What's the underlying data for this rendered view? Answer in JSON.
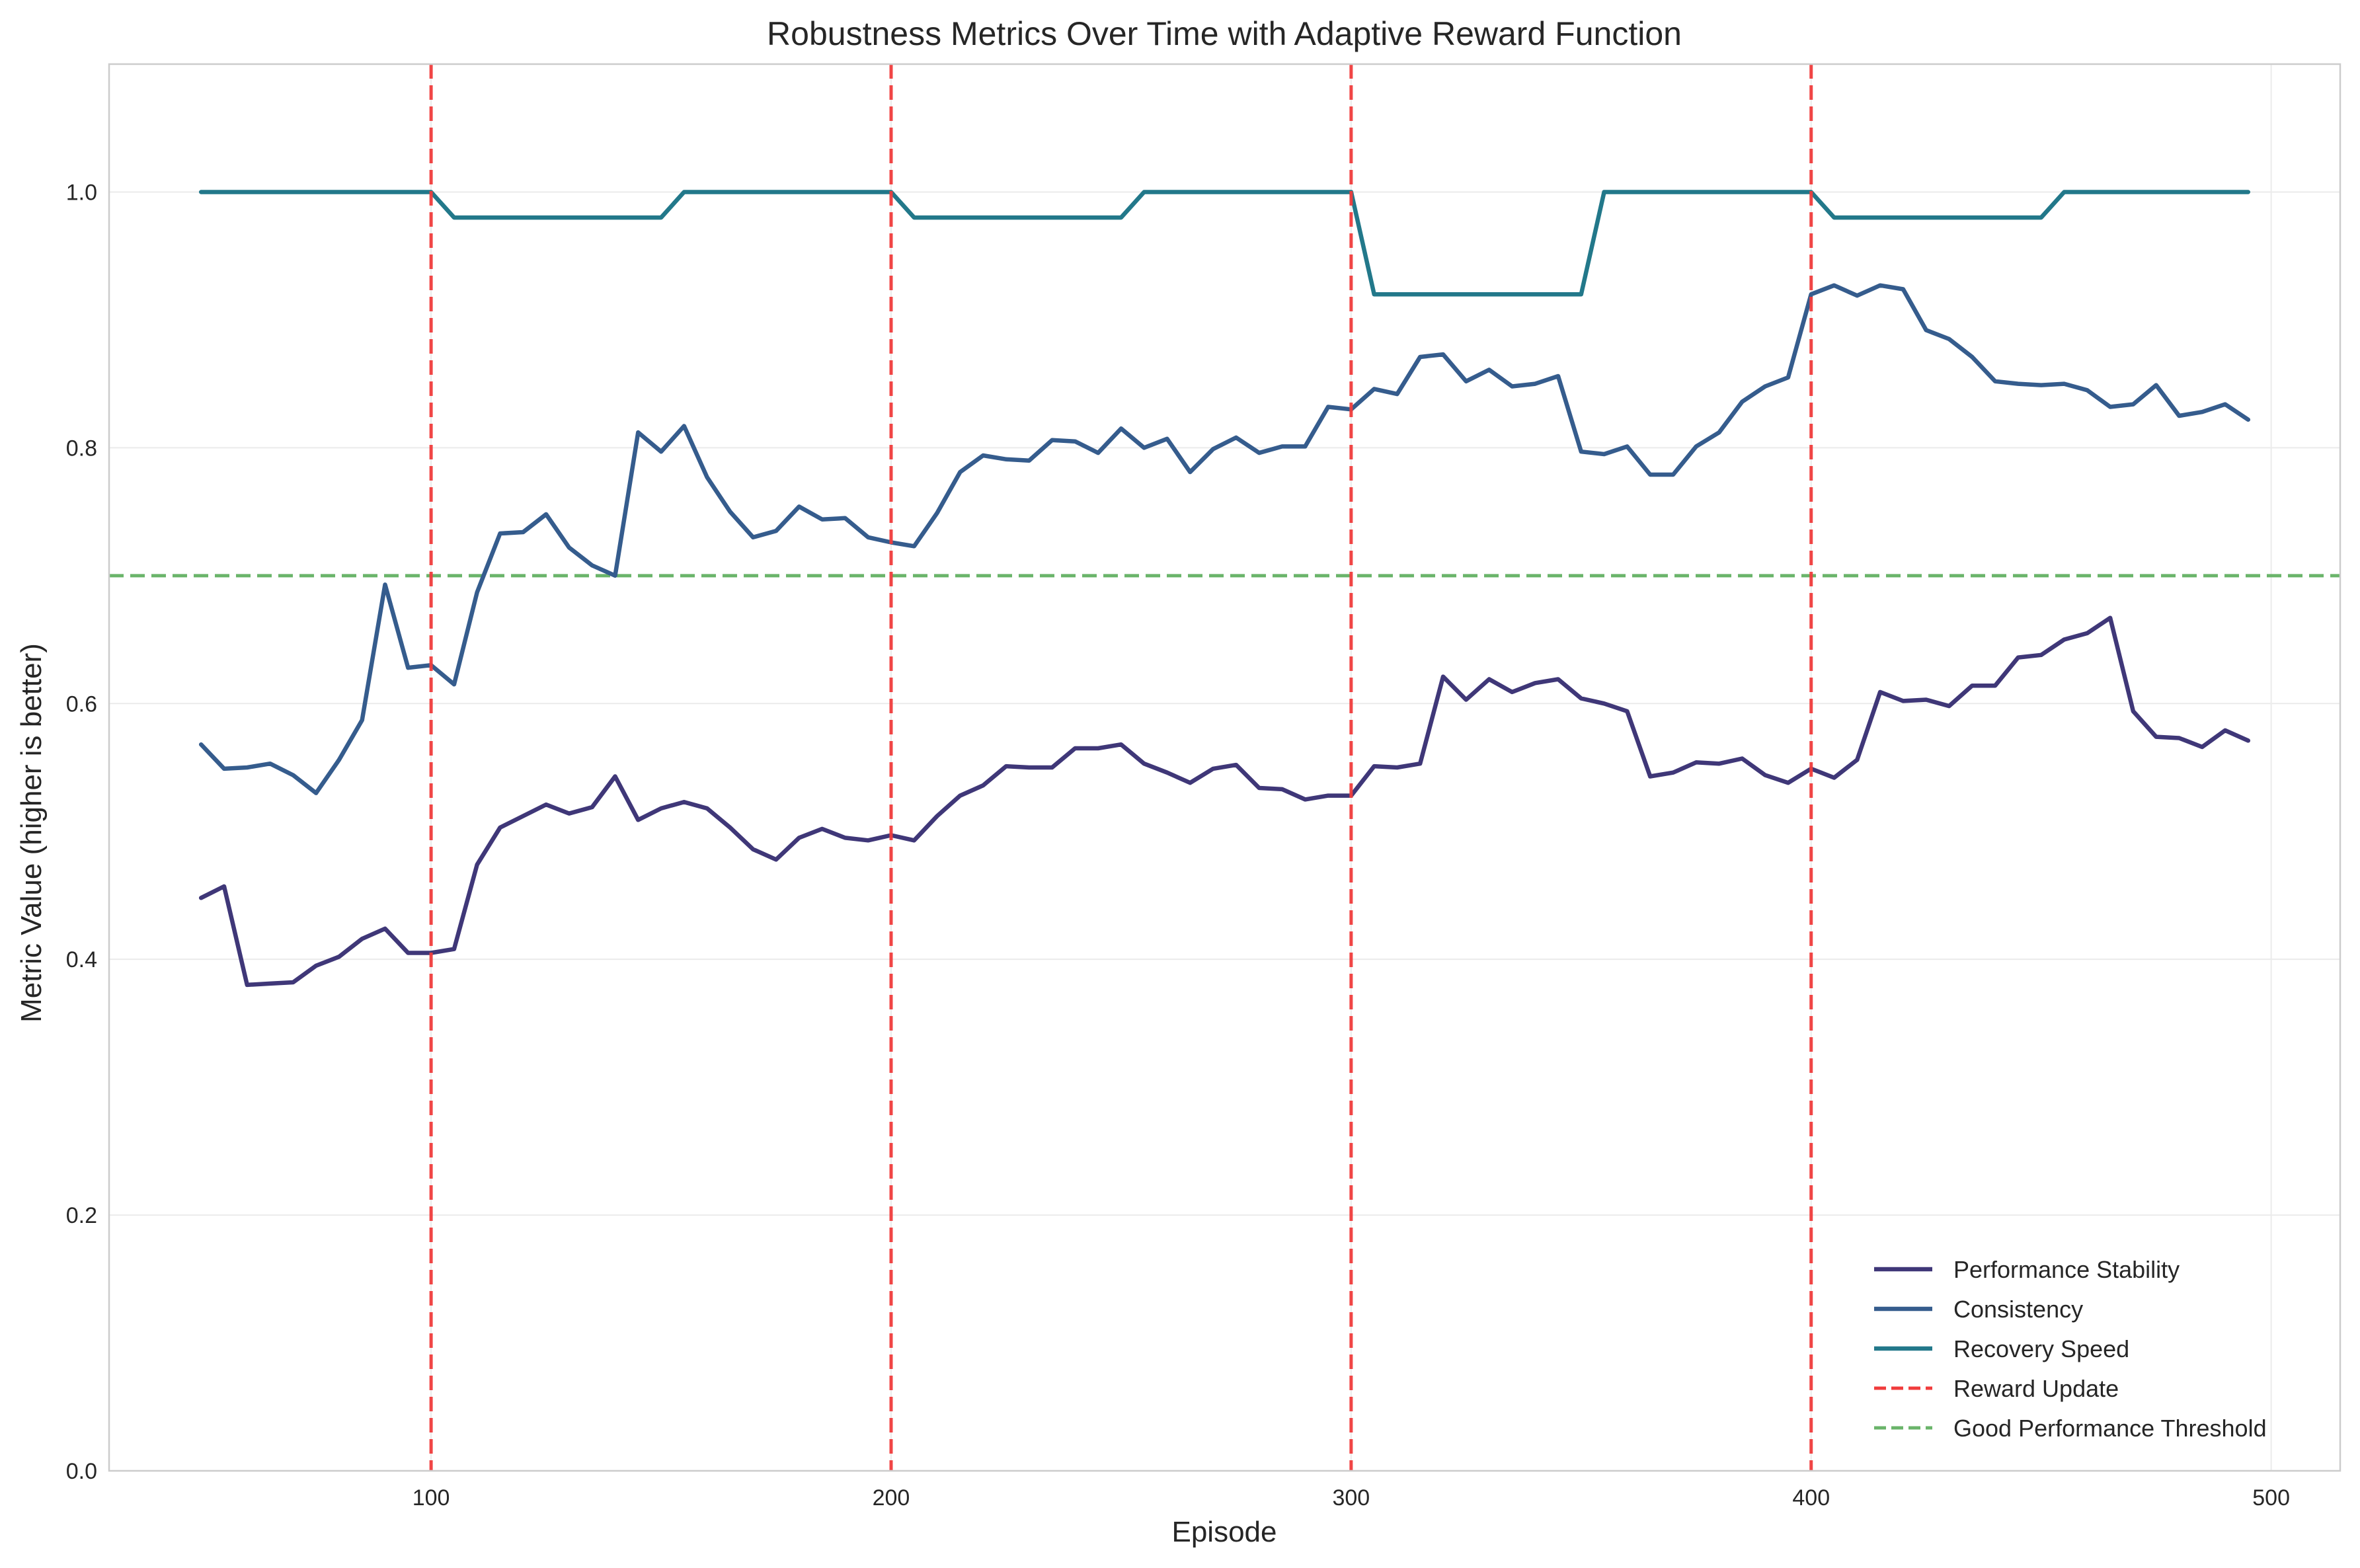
{
  "chart_data": {
    "type": "line",
    "title": "Robustness Metrics Over Time with Adaptive Reward Function",
    "xlabel": "Episode",
    "ylabel": "Metric Value (higher is better)",
    "xlim": [
      30,
      515
    ],
    "ylim": [
      0.0,
      1.1
    ],
    "xticks": [
      100,
      200,
      300,
      400,
      500
    ],
    "xtick_labels": [
      "100",
      "200",
      "300",
      "400",
      "500"
    ],
    "yticks": [
      0.0,
      0.2,
      0.4,
      0.6,
      0.8,
      1.0
    ],
    "ytick_labels": [
      "0.0",
      "0.2",
      "0.4",
      "0.6",
      "0.8",
      "1.0"
    ],
    "grid": true,
    "legend_position": "lower-right",
    "x": [
      50,
      55,
      60,
      65,
      70,
      75,
      80,
      85,
      90,
      95,
      100,
      105,
      110,
      115,
      120,
      125,
      130,
      135,
      140,
      145,
      150,
      155,
      160,
      165,
      170,
      175,
      180,
      185,
      190,
      195,
      200,
      205,
      210,
      215,
      220,
      225,
      230,
      235,
      240,
      245,
      250,
      255,
      260,
      265,
      270,
      275,
      280,
      285,
      290,
      295,
      300,
      305,
      310,
      315,
      320,
      325,
      330,
      335,
      340,
      345,
      350,
      355,
      360,
      365,
      370,
      375,
      380,
      385,
      390,
      395,
      400,
      405,
      410,
      415,
      420,
      425,
      430,
      435,
      440,
      445,
      450,
      455,
      460,
      465,
      470,
      475,
      480,
      485,
      490,
      495
    ],
    "series": [
      {
        "name": "Performance Stability",
        "color": "#3f3778",
        "values": [
          0.448,
          0.457,
          0.38,
          0.381,
          0.382,
          0.395,
          0.402,
          0.416,
          0.424,
          0.405,
          0.405,
          0.408,
          0.474,
          0.503,
          0.512,
          0.521,
          0.514,
          0.519,
          0.543,
          0.509,
          0.518,
          0.523,
          0.518,
          0.503,
          0.486,
          0.478,
          0.495,
          0.502,
          0.495,
          0.493,
          0.497,
          0.493,
          0.512,
          0.528,
          0.536,
          0.551,
          0.55,
          0.55,
          0.565,
          0.565,
          0.568,
          0.553,
          0.546,
          0.538,
          0.549,
          0.552,
          0.534,
          0.533,
          0.525,
          0.528,
          0.528,
          0.551,
          0.55,
          0.553,
          0.621,
          0.603,
          0.619,
          0.609,
          0.616,
          0.619,
          0.604,
          0.6,
          0.594,
          0.543,
          0.546,
          0.554,
          0.553,
          0.557,
          0.544,
          0.538,
          0.549,
          0.542,
          0.556,
          0.609,
          0.602,
          0.603,
          0.598,
          0.614,
          0.614,
          0.636,
          0.638,
          0.65,
          0.655,
          0.667,
          0.594,
          0.574,
          0.573,
          0.566,
          0.579,
          0.571
        ]
      },
      {
        "name": "Consistency",
        "color": "#355c8d",
        "values": [
          0.568,
          0.549,
          0.55,
          0.553,
          0.544,
          0.53,
          0.556,
          0.587,
          0.693,
          0.628,
          0.63,
          0.615,
          0.687,
          0.733,
          0.734,
          0.748,
          0.722,
          0.708,
          0.7,
          0.812,
          0.797,
          0.817,
          0.777,
          0.75,
          0.73,
          0.735,
          0.754,
          0.744,
          0.745,
          0.73,
          0.726,
          0.723,
          0.749,
          0.781,
          0.794,
          0.791,
          0.79,
          0.806,
          0.805,
          0.796,
          0.815,
          0.8,
          0.807,
          0.781,
          0.799,
          0.808,
          0.796,
          0.801,
          0.801,
          0.832,
          0.83,
          0.846,
          0.842,
          0.871,
          0.873,
          0.852,
          0.861,
          0.848,
          0.85,
          0.856,
          0.797,
          0.795,
          0.801,
          0.779,
          0.779,
          0.801,
          0.812,
          0.836,
          0.848,
          0.855,
          0.92,
          0.927,
          0.919,
          0.927,
          0.924,
          0.892,
          0.885,
          0.871,
          0.852,
          0.85,
          0.849,
          0.85,
          0.845,
          0.832,
          0.834,
          0.849,
          0.825,
          0.828,
          0.834,
          0.822
        ]
      },
      {
        "name": "Recovery Speed",
        "color": "#22788a",
        "values": [
          1.0,
          1.0,
          1.0,
          1.0,
          1.0,
          1.0,
          1.0,
          1.0,
          1.0,
          1.0,
          1.0,
          0.98,
          0.98,
          0.98,
          0.98,
          0.98,
          0.98,
          0.98,
          0.98,
          0.98,
          0.98,
          1.0,
          1.0,
          1.0,
          1.0,
          1.0,
          1.0,
          1.0,
          1.0,
          1.0,
          1.0,
          0.98,
          0.98,
          0.98,
          0.98,
          0.98,
          0.98,
          0.98,
          0.98,
          0.98,
          0.98,
          1.0,
          1.0,
          1.0,
          1.0,
          1.0,
          1.0,
          1.0,
          1.0,
          1.0,
          1.0,
          0.92,
          0.92,
          0.92,
          0.92,
          0.92,
          0.92,
          0.92,
          0.92,
          0.92,
          0.92,
          1.0,
          1.0,
          1.0,
          1.0,
          1.0,
          1.0,
          1.0,
          1.0,
          1.0,
          1.0,
          0.98,
          0.98,
          0.98,
          0.98,
          0.98,
          0.98,
          0.98,
          0.98,
          0.98,
          0.98,
          1.0,
          1.0,
          1.0,
          1.0,
          1.0,
          1.0,
          1.0,
          1.0,
          1.0
        ]
      }
    ],
    "vlines": {
      "name": "Reward Update",
      "color": "#f03c3c",
      "x": [
        100,
        200,
        300,
        400
      ]
    },
    "hline": {
      "name": "Good Performance Threshold",
      "color": "#6ab46a",
      "y": 0.7
    },
    "legend": [
      "Performance Stability",
      "Consistency",
      "Recovery Speed",
      "Reward Update",
      "Good Performance Threshold"
    ]
  }
}
